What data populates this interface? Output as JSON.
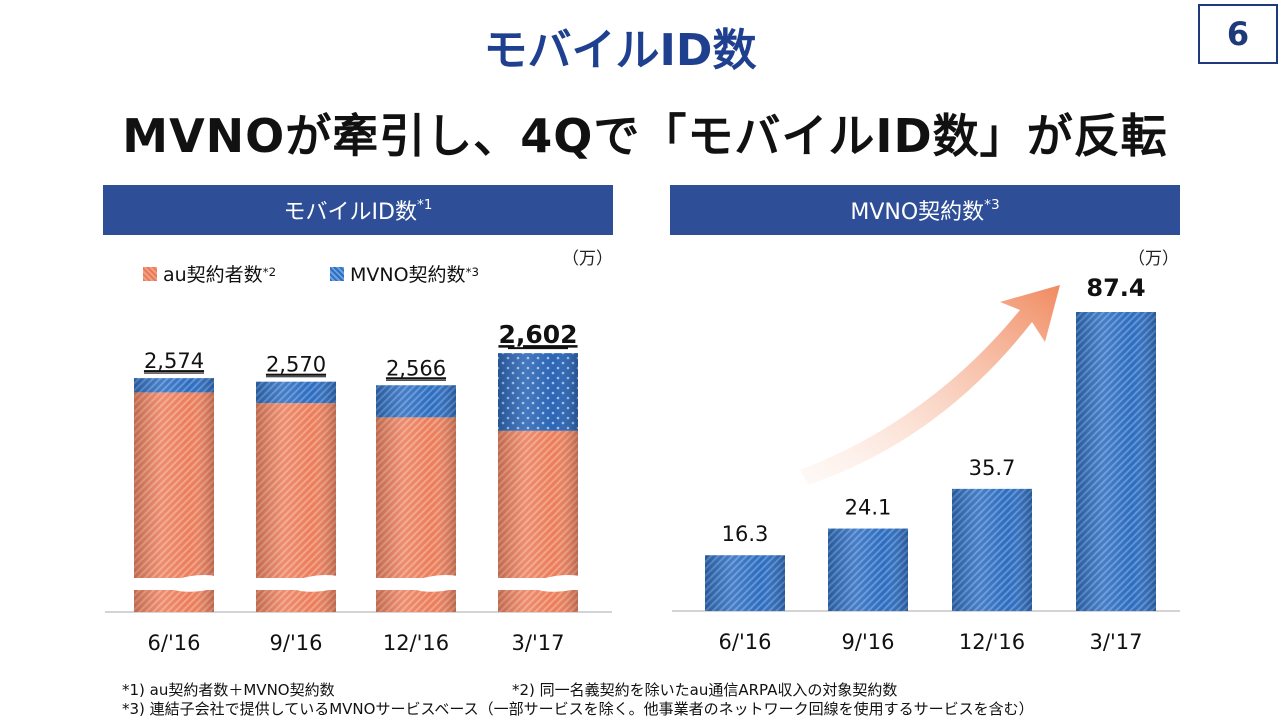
{
  "page_number": "6",
  "title": "モバイルID数",
  "headline": "MVNOが牽引し、4Qで「モバイルID数」が反転",
  "left_panel": {
    "heading": "モバイルID数",
    "heading_note": "*1",
    "unit": "（万）"
  },
  "right_panel": {
    "heading": "MVNO契約数",
    "heading_note": "*3",
    "unit": "（万）"
  },
  "legend": {
    "au": {
      "label": "au契約者数",
      "note": "*2"
    },
    "mvno": {
      "label": "MVNO契約数",
      "note": "*3"
    }
  },
  "footnotes": {
    "note1": "*1) au契約者数＋MVNO契約数",
    "note2": "*2) 同一名義契約を除いたau通信ARPA収入の対象契約数",
    "note3": "*3) 連結子会社で提供しているMVNOサービスベース（一部サービスを除く。他事業者のネットワーク回線を使用するサービスを含む）"
  },
  "colors": {
    "au": "#e8795a",
    "mvno": "#2f6fc0",
    "header": "#2e4f97",
    "arrow": "#f08a60"
  },
  "chart_data": [
    {
      "type": "bar",
      "stacked": true,
      "axis_break": true,
      "categories": [
        "6/'16",
        "9/'16",
        "12/'16",
        "3/'17"
      ],
      "totals": [
        2574,
        2570,
        2566,
        2602
      ],
      "total_labels": [
        "2,574",
        "2,570",
        "2,566",
        "2,602"
      ],
      "series": [
        {
          "name": "au契約者数",
          "values": [
            2558,
            2546,
            2530,
            2515
          ]
        },
        {
          "name": "MVNO契約数",
          "values": [
            16.3,
            24.1,
            35.7,
            87.4
          ]
        }
      ]
    },
    {
      "type": "bar",
      "categories": [
        "6/'16",
        "9/'16",
        "12/'16",
        "3/'17"
      ],
      "values": [
        16.3,
        24.1,
        35.7,
        87.4
      ],
      "value_labels": [
        "16.3",
        "24.1",
        "35.7",
        "87.4"
      ],
      "ylim": [
        0,
        95
      ],
      "trend_arrow": true
    }
  ]
}
